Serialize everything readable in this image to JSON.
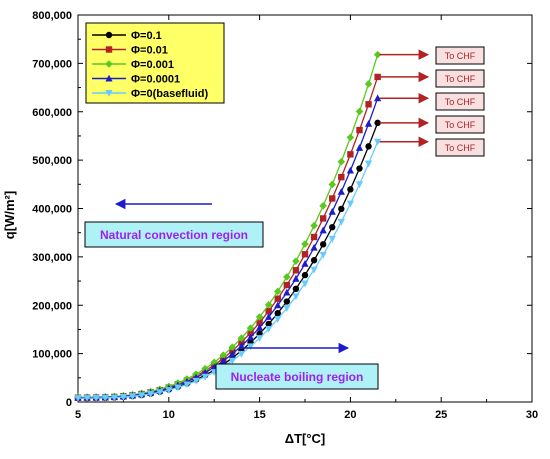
{
  "chart_data": {
    "type": "line",
    "xlabel": "ΔT[°C]",
    "ylabel": "q[W/m²]",
    "xlim": [
      5,
      30
    ],
    "ylim": [
      0,
      800000
    ],
    "xticks": [
      5,
      10,
      15,
      20,
      25,
      30
    ],
    "yticks": [
      0,
      100000,
      200000,
      300000,
      400000,
      500000,
      600000,
      700000,
      800000
    ],
    "ytick_labels": [
      "0",
      "100,000",
      "200,000",
      "300,000",
      "400,000",
      "500,000",
      "600,000",
      "700,000",
      "800,000"
    ],
    "grid": false,
    "legend_position": "top-left",
    "series": [
      {
        "name": "Φ=0.1",
        "color": "#000000",
        "marker": "circle",
        "x_start": 5,
        "x_end": 21.5,
        "y_start": 8000,
        "y_end": 577000
      },
      {
        "name": "Φ=0.01",
        "color": "#b22222",
        "marker": "square",
        "x_start": 5,
        "x_end": 21.5,
        "y_start": 9000,
        "y_end": 672000
      },
      {
        "name": "Φ=0.001",
        "color": "#5ac81e",
        "marker": "diamond",
        "x_start": 5,
        "x_end": 21.5,
        "y_start": 10000,
        "y_end": 718000
      },
      {
        "name": "Φ=0.0001",
        "color": "#1c1cc8",
        "marker": "triangle-up",
        "x_start": 5,
        "x_end": 21.5,
        "y_start": 9000,
        "y_end": 628000
      },
      {
        "name": "Φ=0(basefluid)",
        "color": "#66ccff",
        "marker": "triangle-down",
        "x_start": 5,
        "x_end": 21.5,
        "y_start": 8000,
        "y_end": 538000
      }
    ],
    "chf_label": "To CHF",
    "annotations": {
      "natural": "Natural convection region",
      "nucleate": "Nucleate boiling region"
    },
    "colors": {
      "legend_bg": "#ffff66",
      "region_box_bg": "#aef2f8",
      "region_text": "#a020f0",
      "region_arrow": "#1c1cc8",
      "chf_arrow": "#b22222",
      "chf_box_bg": "#f8e0e0",
      "chf_text": "#b22222"
    }
  }
}
